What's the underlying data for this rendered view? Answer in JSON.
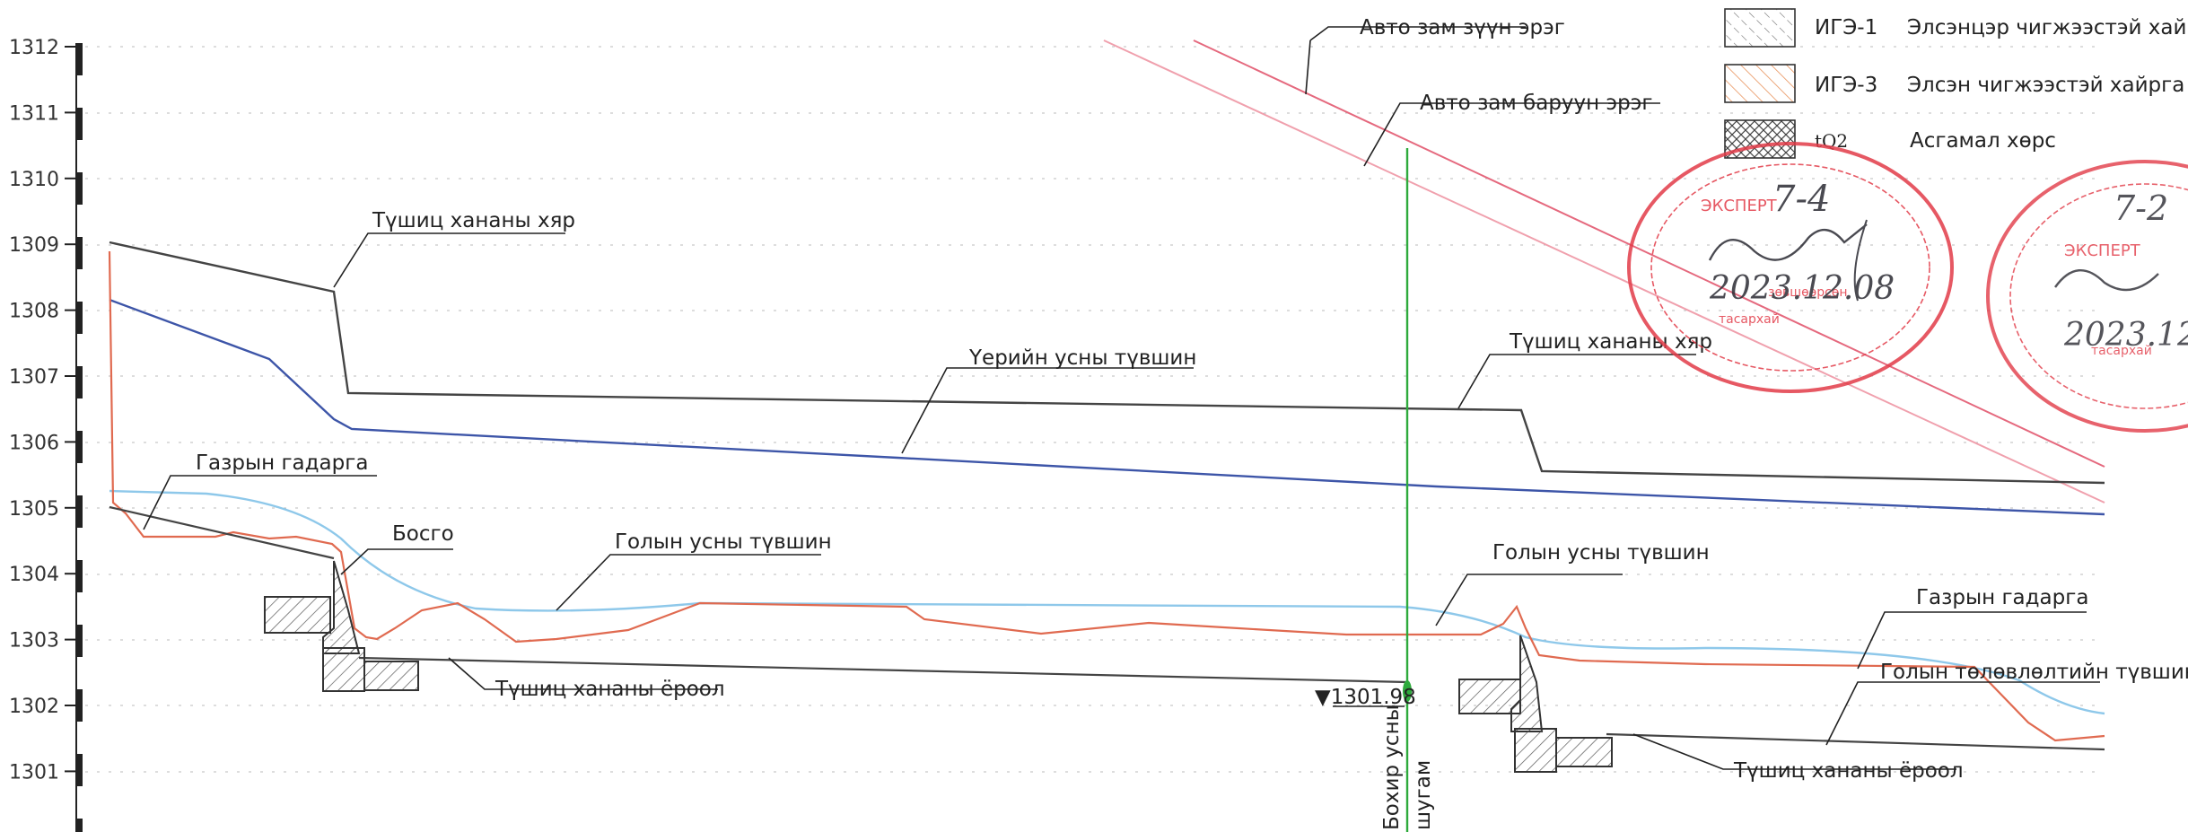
{
  "axis": {
    "y_ticks": [
      "1312",
      "1311",
      "1310",
      "1309",
      "1308",
      "1307",
      "1306",
      "1305",
      "1304",
      "1303",
      "1302",
      "1301"
    ]
  },
  "labels": {
    "road_left_edge": "Авто зам зүүн эрэг",
    "road_right_edge": "Авто зам баруун эрэг",
    "wall_top_left": "Түшиц хананы хяр",
    "wall_top_right": "Түшиц хананы хяр",
    "groundwater_level": "Үерийн усны түвшин",
    "ground_surface_left": "Газрын гадарга",
    "ground_surface_right": "Газрын гадарга",
    "threshold": "Босго",
    "river_level_left": "Голын усны түвшин",
    "river_level_right": "Голын усны түвшин",
    "wall_bottom_left": "Түшиц хананы ёроол",
    "wall_bottom_right": "Түшиц хананы ёроол",
    "river_bed_plan": "Голын төлөвлөлтийн түвшин",
    "sewer_elevation": "▼1301.98",
    "sewer_line_1": "Бохир усны",
    "sewer_line_2": "шугам"
  },
  "legend": [
    {
      "code": "ИГЭ-1",
      "description": "Элсэнцэр чигжээстэй хайр",
      "pattern": "dashed-hatch"
    },
    {
      "code": "ИГЭ-3",
      "description": "Элсэн чигжээстэй хайрга",
      "pattern": "orange-hatch"
    },
    {
      "code": "tQ2",
      "description": "Асгамал хөрс",
      "pattern": "cross-hatch"
    }
  ],
  "stamps": [
    {
      "handwritten_number": "7-4",
      "handwritten_date": "2023.12.08"
    },
    {
      "handwritten_number": "7-2",
      "handwritten_date": "2023.12"
    }
  ],
  "colors": {
    "wall_line": "#444444",
    "groundwater": "#3d55a8",
    "ground_surface": "#e06a50",
    "river_level": "#8ec8ea",
    "road_edges": "#e5697e",
    "sewer": "#2eaa3c",
    "stamp": "#e23b48"
  }
}
